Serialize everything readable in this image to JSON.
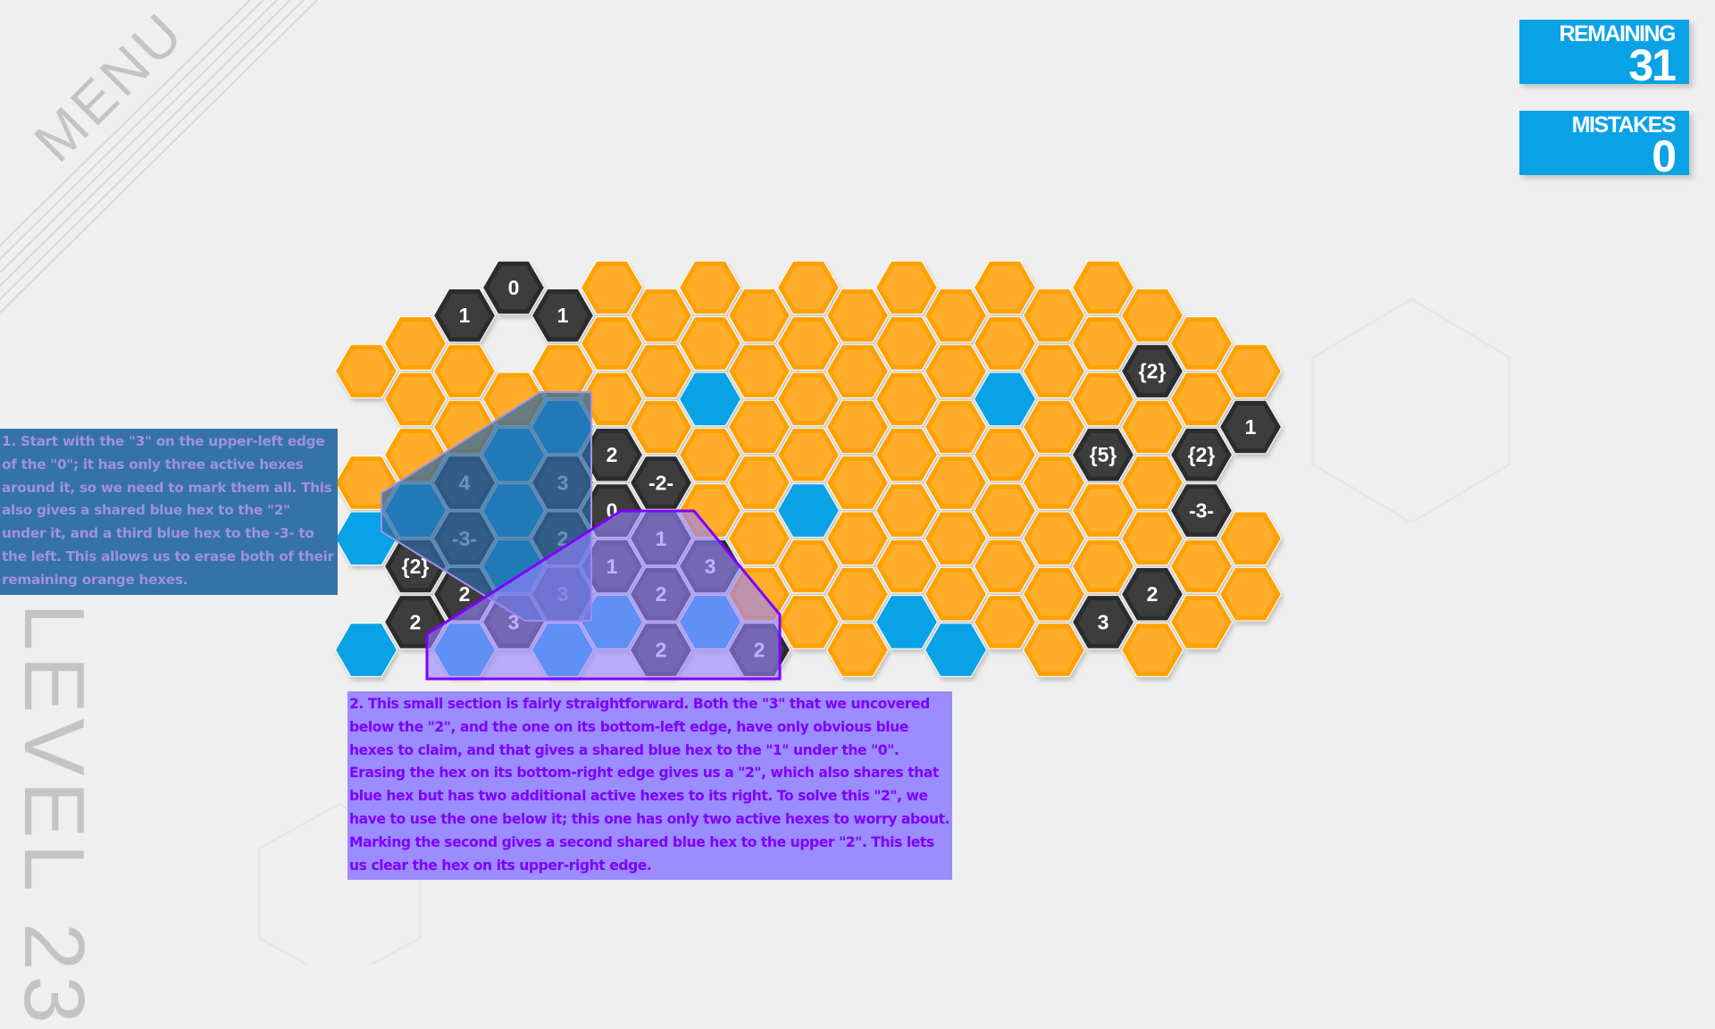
{
  "menu_label": "MENU",
  "level_label": "LEVEL 23",
  "counters": {
    "remaining": {
      "label": "REMAINING",
      "value": "31"
    },
    "mistakes": {
      "label": "MISTAKES",
      "value": "0"
    }
  },
  "colors": {
    "orange": "#ffad2a",
    "orange_border": "#ffa100",
    "blue": "#0aa2e6",
    "dark": "#3d3d3d",
    "dark_border": "#2c2c2c",
    "counter_bg": "#0aa2e6",
    "note1_bg": "#3572a5",
    "note2_bg": "#9b8cff"
  },
  "notes": {
    "step1": "1. Start with the \"3\" on the upper-left edge of the \"0\"; it has only three active hexes around it, so we need to mark them all.  This also gives a shared blue hex to the \"2\" under it, and a third blue hex to the -3- to the left.  This allows us to erase both of their remaining orange hexes.",
    "step2": "2. This small section is fairly straightforward.  Both the \"3\" that we uncovered below the \"2\", and the one on its bottom-left edge, have only obvious blue hexes to claim, and that gives a shared blue hex to the \"1\" under the \"0\".  Erasing the hex on its bottom-right edge gives us a \"2\", which also shares that blue hex but has two additional active hexes to its right.  To solve this \"2\", we have to use the one below it; this one has only two active hexes to worry about.  Marking the second gives a second shared blue hex to the upper \"2\".  This lets us clear the hex on its upper-right edge."
  },
  "grid": [
    {
      "col": 0,
      "row": 3,
      "type": "orange"
    },
    {
      "col": 0,
      "row": 7,
      "type": "orange"
    },
    {
      "col": 0,
      "row": 9,
      "type": "blue"
    },
    {
      "col": 0,
      "row": 13,
      "type": "blue"
    },
    {
      "col": 1,
      "row": 2,
      "type": "orange"
    },
    {
      "col": 1,
      "row": 4,
      "type": "orange"
    },
    {
      "col": 1,
      "row": 6,
      "type": "orange"
    },
    {
      "col": 1,
      "row": 8,
      "type": "blue"
    },
    {
      "col": 1,
      "row": 10,
      "type": "dark",
      "label": "{2}"
    },
    {
      "col": 1,
      "row": 12,
      "type": "dark",
      "label": "2"
    },
    {
      "col": 2,
      "row": 1,
      "type": "dark",
      "label": "1"
    },
    {
      "col": 2,
      "row": 3,
      "type": "orange"
    },
    {
      "col": 2,
      "row": 5,
      "type": "orange"
    },
    {
      "col": 2,
      "row": 7,
      "type": "dark",
      "label": "4"
    },
    {
      "col": 2,
      "row": 9,
      "type": "dark",
      "label": "-3-"
    },
    {
      "col": 2,
      "row": 11,
      "type": "dark",
      "label": "2"
    },
    {
      "col": 2,
      "row": 13,
      "type": "blue"
    },
    {
      "col": 3,
      "row": 0,
      "type": "dark",
      "label": "0"
    },
    {
      "col": 3,
      "row": 4,
      "type": "orange"
    },
    {
      "col": 3,
      "row": 6,
      "type": "blue"
    },
    {
      "col": 3,
      "row": 8,
      "type": "blue"
    },
    {
      "col": 3,
      "row": 10,
      "type": "blue"
    },
    {
      "col": 3,
      "row": 12,
      "type": "dark",
      "label": "3"
    },
    {
      "col": 4,
      "row": 1,
      "type": "dark",
      "label": "1"
    },
    {
      "col": 4,
      "row": 3,
      "type": "orange"
    },
    {
      "col": 4,
      "row": 5,
      "type": "blue"
    },
    {
      "col": 4,
      "row": 7,
      "type": "dark",
      "label": "3"
    },
    {
      "col": 4,
      "row": 9,
      "type": "dark",
      "label": "2"
    },
    {
      "col": 4,
      "row": 11,
      "type": "dark",
      "label": "3"
    },
    {
      "col": 4,
      "row": 13,
      "type": "blue"
    },
    {
      "col": 5,
      "row": 0,
      "type": "orange"
    },
    {
      "col": 5,
      "row": 2,
      "type": "orange"
    },
    {
      "col": 5,
      "row": 4,
      "type": "orange"
    },
    {
      "col": 5,
      "row": 6,
      "type": "dark",
      "label": "2"
    },
    {
      "col": 5,
      "row": 8,
      "type": "dark",
      "label": "0"
    },
    {
      "col": 5,
      "row": 10,
      "type": "dark",
      "label": "1"
    },
    {
      "col": 5,
      "row": 12,
      "type": "blue"
    },
    {
      "col": 6,
      "row": 1,
      "type": "orange"
    },
    {
      "col": 6,
      "row": 3,
      "type": "orange"
    },
    {
      "col": 6,
      "row": 5,
      "type": "orange"
    },
    {
      "col": 6,
      "row": 7,
      "type": "dark",
      "label": "-2-"
    },
    {
      "col": 6,
      "row": 9,
      "type": "dark",
      "label": "1"
    },
    {
      "col": 6,
      "row": 11,
      "type": "dark",
      "label": "2"
    },
    {
      "col": 6,
      "row": 13,
      "type": "dark",
      "label": "2"
    },
    {
      "col": 7,
      "row": 0,
      "type": "orange"
    },
    {
      "col": 7,
      "row": 2,
      "type": "orange"
    },
    {
      "col": 7,
      "row": 4,
      "type": "blue"
    },
    {
      "col": 7,
      "row": 6,
      "type": "orange"
    },
    {
      "col": 7,
      "row": 8,
      "type": "orange"
    },
    {
      "col": 7,
      "row": 10,
      "type": "dark",
      "label": "3"
    },
    {
      "col": 7,
      "row": 12,
      "type": "blue"
    },
    {
      "col": 8,
      "row": 1,
      "type": "orange"
    },
    {
      "col": 8,
      "row": 3,
      "type": "orange"
    },
    {
      "col": 8,
      "row": 5,
      "type": "orange"
    },
    {
      "col": 8,
      "row": 7,
      "type": "orange"
    },
    {
      "col": 8,
      "row": 9,
      "type": "orange"
    },
    {
      "col": 8,
      "row": 11,
      "type": "orange"
    },
    {
      "col": 8,
      "row": 13,
      "type": "dark",
      "label": "2"
    },
    {
      "col": 9,
      "row": 0,
      "type": "orange"
    },
    {
      "col": 9,
      "row": 2,
      "type": "orange"
    },
    {
      "col": 9,
      "row": 4,
      "type": "orange"
    },
    {
      "col": 9,
      "row": 6,
      "type": "orange"
    },
    {
      "col": 9,
      "row": 8,
      "type": "blue"
    },
    {
      "col": 9,
      "row": 10,
      "type": "orange"
    },
    {
      "col": 9,
      "row": 12,
      "type": "orange"
    },
    {
      "col": 10,
      "row": 1,
      "type": "orange"
    },
    {
      "col": 10,
      "row": 3,
      "type": "orange"
    },
    {
      "col": 10,
      "row": 5,
      "type": "orange"
    },
    {
      "col": 10,
      "row": 7,
      "type": "orange"
    },
    {
      "col": 10,
      "row": 9,
      "type": "orange"
    },
    {
      "col": 10,
      "row": 11,
      "type": "orange"
    },
    {
      "col": 10,
      "row": 13,
      "type": "orange"
    },
    {
      "col": 11,
      "row": 0,
      "type": "orange"
    },
    {
      "col": 11,
      "row": 2,
      "type": "orange"
    },
    {
      "col": 11,
      "row": 4,
      "type": "orange"
    },
    {
      "col": 11,
      "row": 6,
      "type": "orange"
    },
    {
      "col": 11,
      "row": 8,
      "type": "orange"
    },
    {
      "col": 11,
      "row": 10,
      "type": "orange"
    },
    {
      "col": 11,
      "row": 12,
      "type": "blue"
    },
    {
      "col": 12,
      "row": 1,
      "type": "orange"
    },
    {
      "col": 12,
      "row": 3,
      "type": "orange"
    },
    {
      "col": 12,
      "row": 5,
      "type": "orange"
    },
    {
      "col": 12,
      "row": 7,
      "type": "orange"
    },
    {
      "col": 12,
      "row": 9,
      "type": "orange"
    },
    {
      "col": 12,
      "row": 11,
      "type": "orange"
    },
    {
      "col": 12,
      "row": 13,
      "type": "blue"
    },
    {
      "col": 13,
      "row": 0,
      "type": "orange"
    },
    {
      "col": 13,
      "row": 2,
      "type": "orange"
    },
    {
      "col": 13,
      "row": 4,
      "type": "blue"
    },
    {
      "col": 13,
      "row": 6,
      "type": "orange"
    },
    {
      "col": 13,
      "row": 8,
      "type": "orange"
    },
    {
      "col": 13,
      "row": 10,
      "type": "orange"
    },
    {
      "col": 13,
      "row": 12,
      "type": "orange"
    },
    {
      "col": 14,
      "row": 1,
      "type": "orange"
    },
    {
      "col": 14,
      "row": 3,
      "type": "orange"
    },
    {
      "col": 14,
      "row": 5,
      "type": "orange"
    },
    {
      "col": 14,
      "row": 7,
      "type": "orange"
    },
    {
      "col": 14,
      "row": 9,
      "type": "orange"
    },
    {
      "col": 14,
      "row": 11,
      "type": "orange"
    },
    {
      "col": 14,
      "row": 13,
      "type": "orange"
    },
    {
      "col": 15,
      "row": 0,
      "type": "orange"
    },
    {
      "col": 15,
      "row": 2,
      "type": "orange"
    },
    {
      "col": 15,
      "row": 4,
      "type": "orange"
    },
    {
      "col": 15,
      "row": 6,
      "type": "dark",
      "label": "{5}"
    },
    {
      "col": 15,
      "row": 8,
      "type": "orange"
    },
    {
      "col": 15,
      "row": 10,
      "type": "orange"
    },
    {
      "col": 15,
      "row": 12,
      "type": "dark",
      "label": "3"
    },
    {
      "col": 16,
      "row": 1,
      "type": "orange"
    },
    {
      "col": 16,
      "row": 3,
      "type": "dark",
      "label": "{2}"
    },
    {
      "col": 16,
      "row": 5,
      "type": "orange"
    },
    {
      "col": 16,
      "row": 7,
      "type": "orange"
    },
    {
      "col": 16,
      "row": 9,
      "type": "orange"
    },
    {
      "col": 16,
      "row": 11,
      "type": "dark",
      "label": "2"
    },
    {
      "col": 16,
      "row": 13,
      "type": "orange"
    },
    {
      "col": 17,
      "row": 2,
      "type": "orange"
    },
    {
      "col": 17,
      "row": 4,
      "type": "orange"
    },
    {
      "col": 17,
      "row": 6,
      "type": "dark",
      "label": "{2}"
    },
    {
      "col": 17,
      "row": 8,
      "type": "dark",
      "label": "-3-"
    },
    {
      "col": 17,
      "row": 10,
      "type": "orange"
    },
    {
      "col": 17,
      "row": 12,
      "type": "orange"
    },
    {
      "col": 18,
      "row": 3,
      "type": "orange"
    },
    {
      "col": 18,
      "row": 5,
      "type": "dark",
      "label": "1"
    },
    {
      "col": 18,
      "row": 9,
      "type": "orange"
    },
    {
      "col": 18,
      "row": 11,
      "type": "orange"
    }
  ]
}
